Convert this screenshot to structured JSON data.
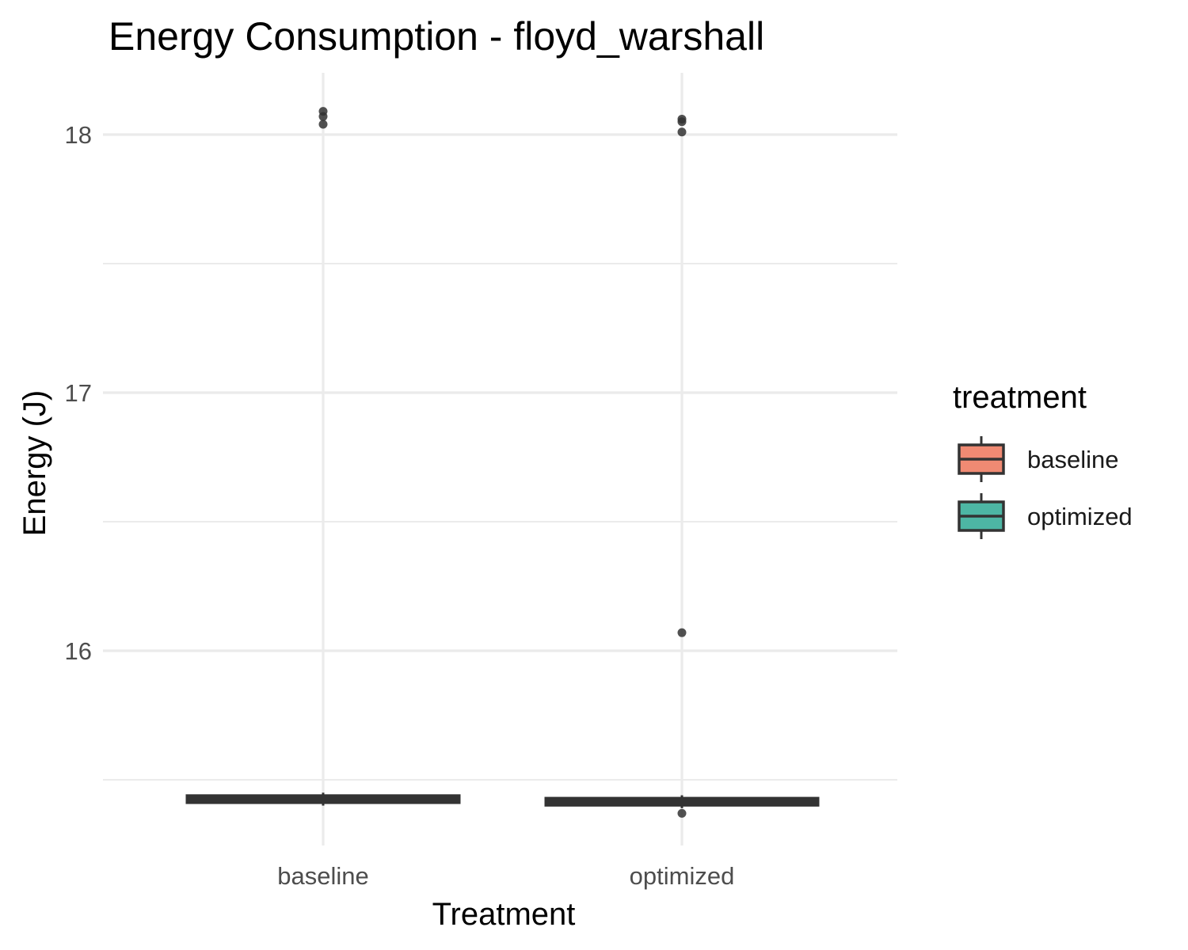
{
  "chart_data": {
    "type": "boxplot",
    "title": "Energy Consumption - floyd_warshall",
    "xlabel": "Treatment",
    "ylabel": "Energy (J)",
    "categories": [
      "baseline",
      "optimized"
    ],
    "ylim": [
      15.5,
      18.2
    ],
    "yticks": [
      16,
      17,
      18
    ],
    "grid": true,
    "legend": {
      "title": "treatment",
      "position": "right",
      "entries": [
        {
          "label": "baseline",
          "color": "#F08A73"
        },
        {
          "label": "optimized",
          "color": "#4DB6A4"
        }
      ]
    },
    "boxes": [
      {
        "category": "baseline",
        "q1": 15.42,
        "median": 15.425,
        "q3": 15.43,
        "whisker_low": 15.4,
        "whisker_high": 15.45,
        "outliers": [
          18.09,
          18.07,
          18.04
        ]
      },
      {
        "category": "optimized",
        "q1": 15.41,
        "median": 15.415,
        "q3": 15.42,
        "whisker_low": 15.39,
        "whisker_high": 15.44,
        "outliers": [
          18.06,
          18.05,
          18.01,
          16.07,
          15.37
        ]
      }
    ]
  }
}
